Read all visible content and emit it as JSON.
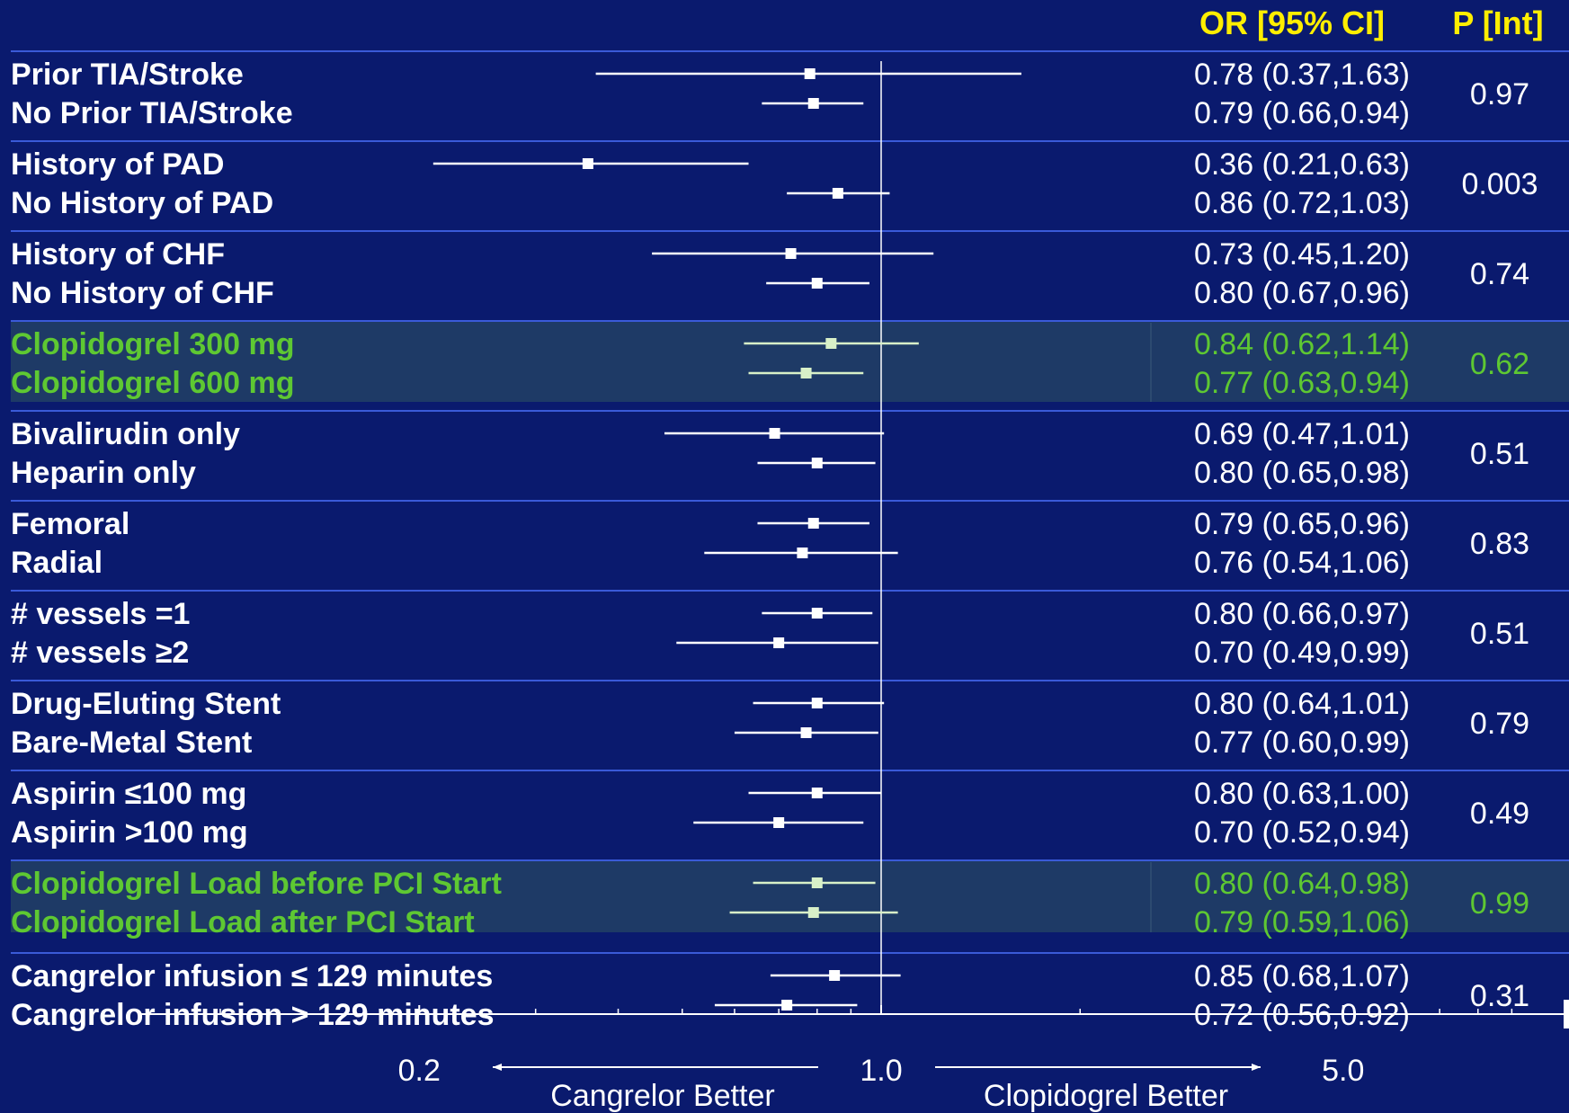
{
  "chart_data": {
    "type": "forest",
    "x_scale": "log",
    "xlim": [
      0.1,
      9.9
    ],
    "x_ticks": [
      0.2,
      1.0,
      5.0
    ],
    "x_tick_labels": [
      "0.2",
      "1.0",
      "5.0"
    ],
    "reference_line": 1.0,
    "left_direction_label": "Cangrelor Better",
    "right_direction_label": "Clopidogrel  Better",
    "col_headers": {
      "or": "OR [95% CI]",
      "p": "P [Int]"
    },
    "colors": {
      "background": "#0a1a6e",
      "header": "#ffee00",
      "text": "#ffffff",
      "highlight_text": "#5ec832",
      "highlight_band": "#1e3a66",
      "highlight_marker": "#d8f0c8",
      "divider": "#3a5ad8"
    },
    "groups": [
      {
        "p": "0.97",
        "highlight": false,
        "rows": [
          {
            "label": "Prior TIA/Stroke",
            "or": 0.78,
            "lo": 0.37,
            "hi": 1.63,
            "text": "0.78 (0.37,1.63)"
          },
          {
            "label": "No Prior TIA/Stroke",
            "or": 0.79,
            "lo": 0.66,
            "hi": 0.94,
            "text": "0.79 (0.66,0.94)"
          }
        ]
      },
      {
        "p": "0.003",
        "highlight": false,
        "rows": [
          {
            "label": "History of PAD",
            "or": 0.36,
            "lo": 0.21,
            "hi": 0.63,
            "text": "0.36 (0.21,0.63)"
          },
          {
            "label": "No History of PAD",
            "or": 0.86,
            "lo": 0.72,
            "hi": 1.03,
            "text": "0.86 (0.72,1.03)"
          }
        ]
      },
      {
        "p": "0.74",
        "highlight": false,
        "rows": [
          {
            "label": "History of CHF",
            "or": 0.73,
            "lo": 0.45,
            "hi": 1.2,
            "text": "0.73 (0.45,1.20)"
          },
          {
            "label": "No History of CHF",
            "or": 0.8,
            "lo": 0.67,
            "hi": 0.96,
            "text": "0.80 (0.67,0.96)"
          }
        ]
      },
      {
        "p": "0.62",
        "highlight": true,
        "rows": [
          {
            "label": "Clopidogrel 300 mg",
            "or": 0.84,
            "lo": 0.62,
            "hi": 1.14,
            "text": "0.84 (0.62,1.14)"
          },
          {
            "label": "Clopidogrel 600 mg",
            "or": 0.77,
            "lo": 0.63,
            "hi": 0.94,
            "text": "0.77 (0.63,0.94)"
          }
        ]
      },
      {
        "p": "0.51",
        "highlight": false,
        "rows": [
          {
            "label": "Bivalirudin only",
            "or": 0.69,
            "lo": 0.47,
            "hi": 1.01,
            "text": "0.69 (0.47,1.01)"
          },
          {
            "label": "Heparin only",
            "or": 0.8,
            "lo": 0.65,
            "hi": 0.98,
            "text": "0.80 (0.65,0.98)"
          }
        ]
      },
      {
        "p": "0.83",
        "highlight": false,
        "rows": [
          {
            "label": "Femoral",
            "or": 0.79,
            "lo": 0.65,
            "hi": 0.96,
            "text": "0.79 (0.65,0.96)"
          },
          {
            "label": "Radial",
            "or": 0.76,
            "lo": 0.54,
            "hi": 1.06,
            "text": "0.76 (0.54,1.06)"
          }
        ]
      },
      {
        "p": "0.51",
        "highlight": false,
        "rows": [
          {
            "label": "# vessels =1",
            "or": 0.8,
            "lo": 0.66,
            "hi": 0.97,
            "text": "0.80 (0.66,0.97)"
          },
          {
            "label": "# vessels  ≥2",
            "or": 0.7,
            "lo": 0.49,
            "hi": 0.99,
            "text": "0.70 (0.49,0.99)"
          }
        ]
      },
      {
        "p": "0.79",
        "highlight": false,
        "rows": [
          {
            "label": "Drug-Eluting Stent",
            "or": 0.8,
            "lo": 0.64,
            "hi": 1.01,
            "text": "0.80 (0.64,1.01)"
          },
          {
            "label": "Bare-Metal Stent",
            "or": 0.77,
            "lo": 0.6,
            "hi": 0.99,
            "text": "0.77 (0.60,0.99)"
          }
        ]
      },
      {
        "p": "0.49",
        "highlight": false,
        "rows": [
          {
            "label": "Aspirin ≤100 mg",
            "or": 0.8,
            "lo": 0.63,
            "hi": 1.0,
            "text": "0.80 (0.63,1.00)"
          },
          {
            "label": "Aspirin >100 mg",
            "or": 0.7,
            "lo": 0.52,
            "hi": 0.94,
            "text": "0.70 (0.52,0.94)"
          }
        ]
      },
      {
        "p": "0.99",
        "highlight": true,
        "rows": [
          {
            "label": "Clopidogrel Load before PCI Start",
            "or": 0.8,
            "lo": 0.64,
            "hi": 0.98,
            "text": "0.80 (0.64,0.98)"
          },
          {
            "label": "Clopidogrel Load after PCI Start",
            "or": 0.79,
            "lo": 0.59,
            "hi": 1.06,
            "text": "0.79 (0.59,1.06)"
          }
        ]
      },
      {
        "p": "0.31",
        "highlight": false,
        "rows": [
          {
            "label": "Cangrelor infusion ≤ 129 minutes",
            "or": 0.85,
            "lo": 0.68,
            "hi": 1.07,
            "text": "0.85 (0.68,1.07)"
          },
          {
            "label": "Cangrelor infusion > 129 minutes",
            "or": 0.72,
            "lo": 0.56,
            "hi": 0.92,
            "text": "0.72 (0.56,0.92)"
          }
        ]
      }
    ]
  }
}
